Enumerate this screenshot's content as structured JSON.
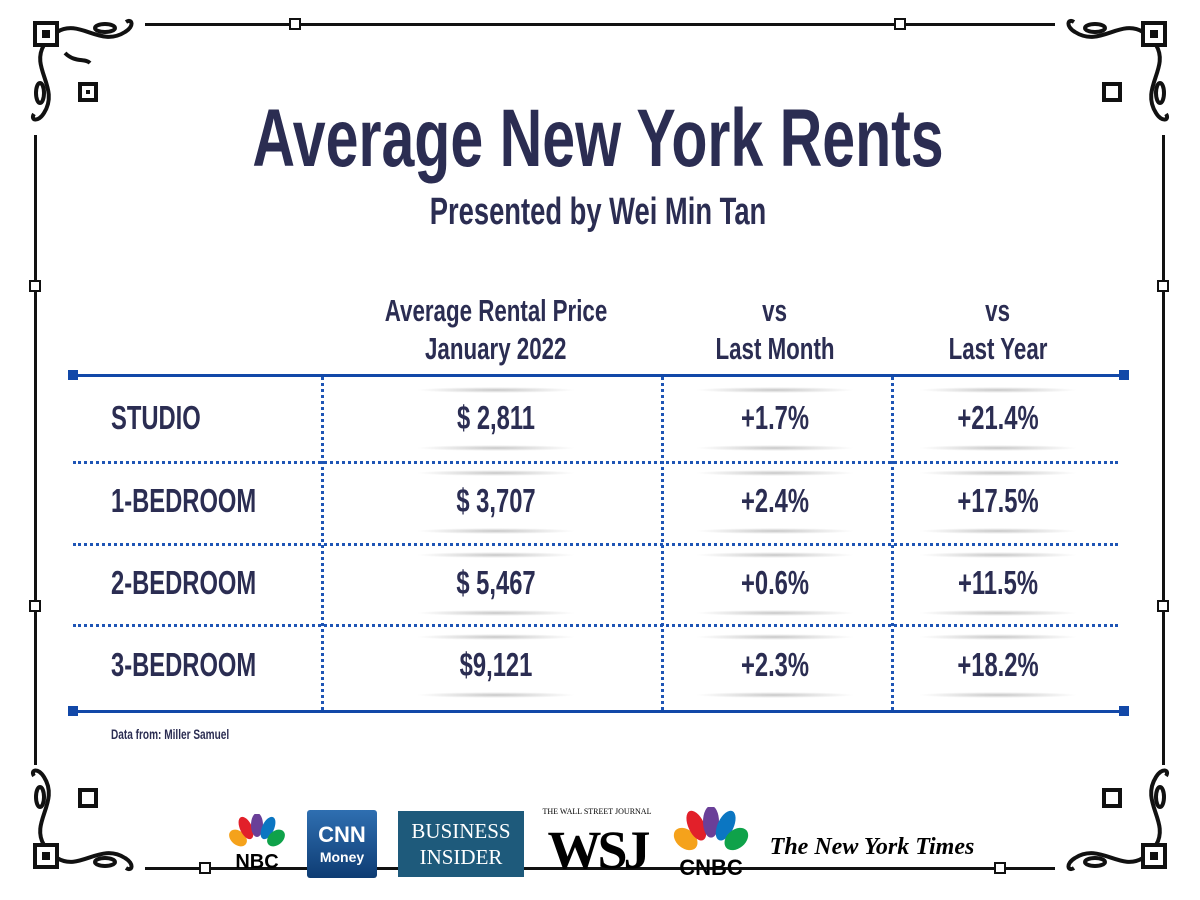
{
  "title": "Average New York Rents",
  "subtitle": "Presented by Wei Min Tan",
  "table": {
    "headers": [
      {
        "line1": "Average Rental Price",
        "line2": "January 2022"
      },
      {
        "line1": "vs",
        "line2": "Last Month"
      },
      {
        "line1": "vs",
        "line2": "Last Year"
      }
    ],
    "rows": [
      {
        "type": "STUDIO",
        "price": "$ 2,811",
        "month": "+1.7%",
        "year": "+21.4%"
      },
      {
        "type": "1-BEDROOM",
        "price": "$ 3,707",
        "month": "+2.4%",
        "year": "+17.5%"
      },
      {
        "type": "2-BEDROOM",
        "price": "$ 5,467",
        "month": "+0.6%",
        "year": "+11.5%"
      },
      {
        "type": "3-BEDROOM",
        "price": "$9,121",
        "month": "+2.3%",
        "year": "+18.2%"
      }
    ]
  },
  "source": "Data from: Miller Samuel",
  "logos": [
    {
      "name": "NBC",
      "text": "NBC"
    },
    {
      "name": "CNN Money",
      "text1": "CNN",
      "text2": "Money"
    },
    {
      "name": "Business Insider",
      "text1": "BUSINESS",
      "text2": "INSIDER"
    },
    {
      "name": "WSJ",
      "text1": "THE WALL STREET JOURNAL",
      "text2": "WSJ"
    },
    {
      "name": "CNBC",
      "text": "CNBC"
    },
    {
      "name": "The New York Times",
      "text": "The New York Times"
    }
  ],
  "colors": {
    "text": "#2b2d52",
    "accent": "#1248a8",
    "frame": "#111111"
  }
}
